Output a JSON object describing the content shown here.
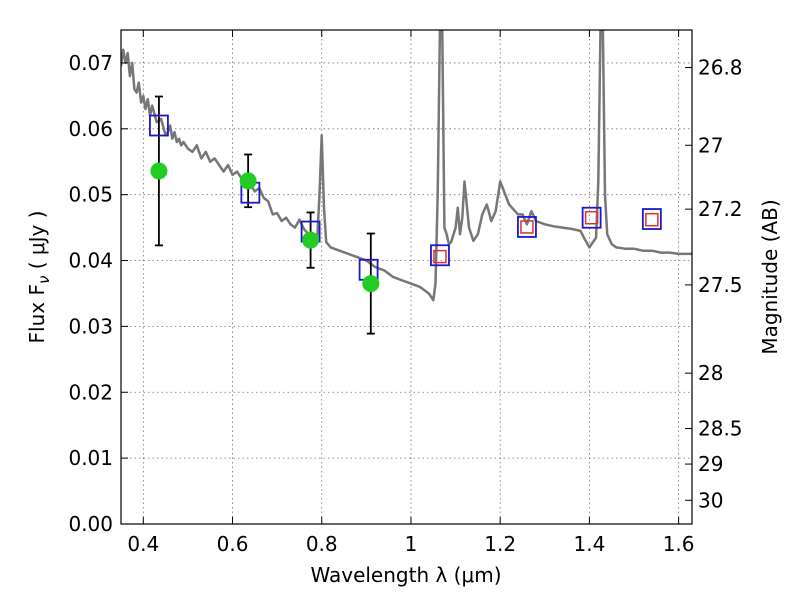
{
  "chart_data": {
    "type": "scatter",
    "title": "",
    "xlabel": "Wavelength  λ (μm)",
    "ylabel": "Flux  F",
    "ylabel_sub": "ν",
    "ylabel_unit": "  ( μJy )",
    "y2label": "Magnitude (AB)",
    "xlim": [
      0.35,
      1.63
    ],
    "ylim": [
      0.0,
      0.075
    ],
    "grid": true,
    "x_ticks": [
      0.4,
      0.6,
      0.8,
      1.0,
      1.2,
      1.4,
      1.6
    ],
    "x_tick_labels": [
      "0.4",
      "0.6",
      "0.8",
      "1",
      "1.2",
      "1.4",
      "1.6"
    ],
    "y_ticks": [
      0.0,
      0.01,
      0.02,
      0.03,
      0.04,
      0.05,
      0.06,
      0.07
    ],
    "y_tick_labels": [
      "0.00",
      "0.01",
      "0.02",
      "0.03",
      "0.04",
      "0.05",
      "0.06",
      "0.07"
    ],
    "y2_ticks": [
      {
        "label": "26.8",
        "flux": 0.0693
      },
      {
        "label": "27",
        "flux": 0.0575
      },
      {
        "label": "27.2",
        "flux": 0.0478
      },
      {
        "label": "27.5",
        "flux": 0.0363
      },
      {
        "label": "28",
        "flux": 0.0229
      },
      {
        "label": "28.5",
        "flux": 0.0145
      },
      {
        "label": "29",
        "flux": 0.0091
      },
      {
        "label": "30",
        "flux": 0.0036
      }
    ],
    "series": [
      {
        "name": "model spectrum",
        "style": "line",
        "color": "#777777",
        "x": [
          0.35,
          0.355,
          0.36,
          0.365,
          0.37,
          0.375,
          0.38,
          0.385,
          0.39,
          0.395,
          0.4,
          0.405,
          0.41,
          0.415,
          0.42,
          0.43,
          0.44,
          0.45,
          0.455,
          0.46,
          0.465,
          0.47,
          0.475,
          0.48,
          0.485,
          0.49,
          0.5,
          0.51,
          0.52,
          0.53,
          0.54,
          0.55,
          0.56,
          0.57,
          0.58,
          0.59,
          0.6,
          0.61,
          0.62,
          0.63,
          0.64,
          0.65,
          0.66,
          0.67,
          0.68,
          0.69,
          0.7,
          0.71,
          0.72,
          0.73,
          0.74,
          0.75,
          0.76,
          0.77,
          0.78,
          0.79,
          0.795,
          0.8,
          0.805,
          0.81,
          0.82,
          0.84,
          0.86,
          0.88,
          0.9,
          0.92,
          0.94,
          0.96,
          0.98,
          1.0,
          1.02,
          1.04,
          1.05,
          1.055,
          1.06,
          1.065,
          1.07,
          1.075,
          1.08,
          1.085,
          1.09,
          1.1,
          1.105,
          1.11,
          1.115,
          1.12,
          1.13,
          1.14,
          1.15,
          1.16,
          1.17,
          1.18,
          1.19,
          1.2,
          1.22,
          1.24,
          1.25,
          1.26,
          1.27,
          1.28,
          1.3,
          1.32,
          1.34,
          1.36,
          1.38,
          1.39,
          1.4,
          1.405,
          1.41,
          1.415,
          1.42,
          1.425,
          1.43,
          1.435,
          1.44,
          1.45,
          1.46,
          1.48,
          1.5,
          1.52,
          1.54,
          1.56,
          1.58,
          1.6,
          1.63
        ],
        "y": [
          0.0695,
          0.072,
          0.07,
          0.0715,
          0.068,
          0.07,
          0.066,
          0.0655,
          0.067,
          0.064,
          0.065,
          0.063,
          0.0645,
          0.062,
          0.0635,
          0.061,
          0.0615,
          0.059,
          0.0595,
          0.0605,
          0.0585,
          0.0595,
          0.058,
          0.0585,
          0.0575,
          0.058,
          0.057,
          0.0565,
          0.0575,
          0.0555,
          0.0565,
          0.055,
          0.0555,
          0.0545,
          0.0535,
          0.0545,
          0.053,
          0.0535,
          0.0525,
          0.052,
          0.0515,
          0.0505,
          0.051,
          0.0495,
          0.049,
          0.047,
          0.0472,
          0.046,
          0.0465,
          0.0455,
          0.045,
          0.0462,
          0.0448,
          0.044,
          0.0438,
          0.0436,
          0.05,
          0.059,
          0.048,
          0.0428,
          0.042,
          0.0415,
          0.041,
          0.0405,
          0.04,
          0.039,
          0.0385,
          0.0375,
          0.037,
          0.0365,
          0.036,
          0.035,
          0.034,
          0.0365,
          0.05,
          0.076,
          0.076,
          0.045,
          0.044,
          0.0425,
          0.0428,
          0.045,
          0.048,
          0.044,
          0.0465,
          0.052,
          0.045,
          0.043,
          0.044,
          0.047,
          0.0485,
          0.046,
          0.0475,
          0.052,
          0.0485,
          0.047,
          0.047,
          0.0455,
          0.0475,
          0.046,
          0.0455,
          0.0452,
          0.045,
          0.0448,
          0.0445,
          0.0432,
          0.042,
          0.0425,
          0.043,
          0.0435,
          0.052,
          0.076,
          0.076,
          0.05,
          0.044,
          0.0425,
          0.042,
          0.0418,
          0.0418,
          0.0415,
          0.0415,
          0.0412,
          0.0412,
          0.041,
          0.041
        ]
      },
      {
        "name": "observed fluxes",
        "style": "points_with_errorbars",
        "color": "#22cc22",
        "x": [
          0.435,
          0.635,
          0.775,
          0.91
        ],
        "y": [
          0.0536,
          0.0521,
          0.0431,
          0.0365
        ],
        "err": [
          0.0113,
          0.004,
          0.0042,
          0.0076
        ]
      },
      {
        "name": "model synthetic photometry (blue)",
        "style": "open_squares",
        "color": "#1a1acc",
        "x": [
          0.435,
          0.64,
          0.775,
          0.905,
          1.065,
          1.26,
          1.405,
          1.54
        ],
        "y": [
          0.0605,
          0.0503,
          0.0444,
          0.0386,
          0.0408,
          0.0451,
          0.0465,
          0.0463
        ]
      },
      {
        "name": "model synthetic photometry (red)",
        "style": "open_squares",
        "color": "#e03030",
        "x": [
          1.065,
          1.26,
          1.405,
          1.54
        ],
        "y": [
          0.0406,
          0.0451,
          0.0465,
          0.0462
        ]
      }
    ]
  }
}
